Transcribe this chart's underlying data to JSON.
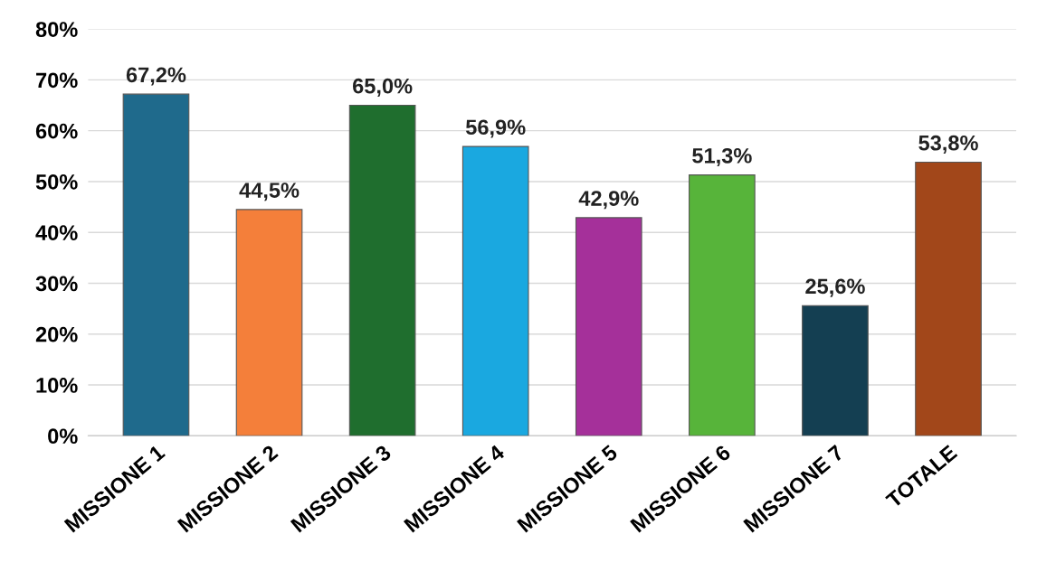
{
  "chart_data": {
    "type": "bar",
    "categories": [
      "MISSIONE 1",
      "MISSIONE 2",
      "MISSIONE 3",
      "MISSIONE 4",
      "MISSIONE 5",
      "MISSIONE 6",
      "MISSIONE 7",
      "TOTALE"
    ],
    "values": [
      67.2,
      44.5,
      65.0,
      56.9,
      42.9,
      51.3,
      25.6,
      53.8
    ],
    "colors": [
      "#1f6a8c",
      "#f47f3a",
      "#1f6e2e",
      "#1aa8e0",
      "#a5309a",
      "#57b43a",
      "#143f52",
      "#a2471a"
    ],
    "value_labels": [
      "67,2%",
      "44,5%",
      "65,0%",
      "56,9%",
      "42,9%",
      "51,3%",
      "25,6%",
      "53,8%"
    ],
    "ylim": [
      0,
      80
    ],
    "yticks": [
      {
        "value": 0,
        "label": "0%"
      },
      {
        "value": 10,
        "label": "10%"
      },
      {
        "value": 20,
        "label": "20%"
      },
      {
        "value": 30,
        "label": "30%"
      },
      {
        "value": 40,
        "label": "40%"
      },
      {
        "value": 50,
        "label": "50%"
      },
      {
        "value": 60,
        "label": "60%"
      },
      {
        "value": 70,
        "label": "70%"
      },
      {
        "value": 80,
        "label": "80%"
      }
    ],
    "grid": "y"
  }
}
